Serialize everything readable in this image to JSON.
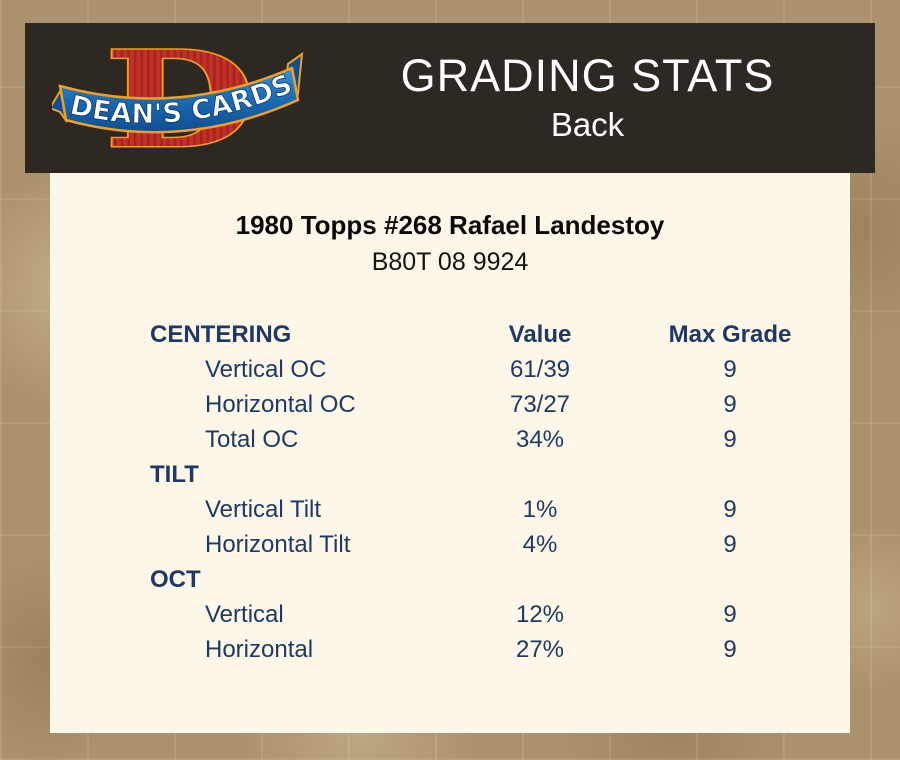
{
  "header": {
    "logo": {
      "letter": "D",
      "brand": "DEAN'S CARDS"
    },
    "title": "GRADING STATS",
    "subtitle": "Back"
  },
  "card": {
    "title": "1980 Topps #268 Rafael Landestoy",
    "serial": "B80T 08 9924"
  },
  "table": {
    "columns": [
      "Value",
      "Max Grade"
    ],
    "sections": [
      {
        "name": "CENTERING",
        "rows": [
          {
            "label": "Vertical OC",
            "value": "61/39",
            "max_grade": "9"
          },
          {
            "label": "Horizontal OC",
            "value": "73/27",
            "max_grade": "9"
          },
          {
            "label": "Total OC",
            "value": "34%",
            "max_grade": "9"
          }
        ]
      },
      {
        "name": "TILT",
        "rows": [
          {
            "label": "Vertical Tilt",
            "value": "1%",
            "max_grade": "9"
          },
          {
            "label": "Horizontal Tilt",
            "value": "4%",
            "max_grade": "9"
          }
        ]
      },
      {
        "name": "OCT",
        "rows": [
          {
            "label": "Vertical",
            "value": "12%",
            "max_grade": "9"
          },
          {
            "label": "Horizontal",
            "value": "27%",
            "max_grade": "9"
          }
        ]
      }
    ]
  },
  "colors": {
    "page_background": "#ab926c",
    "header_background": "#2e2822",
    "panel_background": "#fcf7e9",
    "header_text": "#ffffff",
    "table_text": "#1e3a64",
    "card_title_text": "#0a0a0a",
    "logo_red": "#c23128",
    "logo_red_stripe": "#a5251d",
    "logo_orange": "#f0a021",
    "logo_blue_light": "#3a8fd1",
    "logo_blue_dark": "#0d4f92",
    "logo_text_outline": "#123a6d"
  }
}
